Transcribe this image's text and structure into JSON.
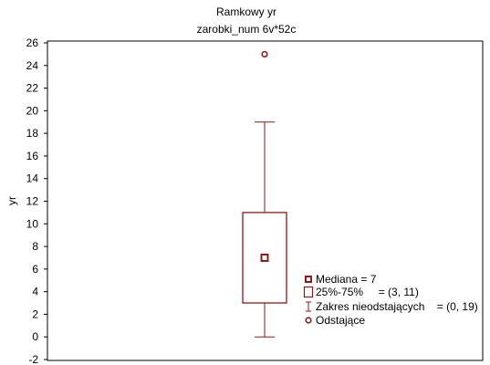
{
  "chart_data": {
    "type": "box",
    "title": "Ramkowy    yr",
    "subtitle": "zarobki_num 6v*52c",
    "xlabel": "",
    "ylabel": "yr",
    "ylim": [
      -2,
      26
    ],
    "yticks": [
      -2,
      0,
      2,
      4,
      6,
      8,
      10,
      12,
      14,
      16,
      18,
      20,
      22,
      24,
      26
    ],
    "grid": false,
    "legend_position": "bottom-right",
    "color": "#8b1a1a",
    "box": {
      "median": 7,
      "q1": 3,
      "q3": 11,
      "whisker_low": 0,
      "whisker_high": 19,
      "outliers": [
        25
      ]
    },
    "legend": [
      {
        "symbol": "median",
        "label": "Mediana = 7"
      },
      {
        "symbol": "box",
        "label": "25%-75%     = (3, 11)"
      },
      {
        "symbol": "whisker",
        "label": "Zakres nieodstających    = (0, 19)"
      },
      {
        "symbol": "outlier",
        "label": "Odstające"
      }
    ]
  }
}
